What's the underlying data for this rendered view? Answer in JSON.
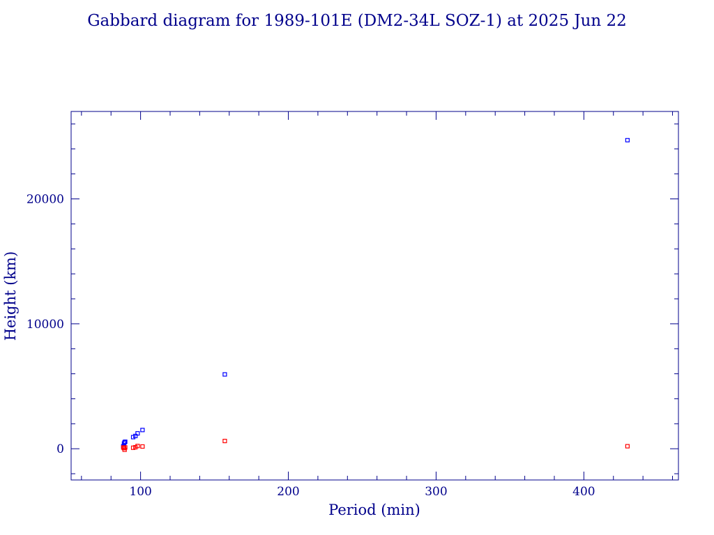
{
  "chart_data": {
    "type": "scatter",
    "title": "Gabbard diagram for 1989-101E (DM2-34L SOZ-1) at 2025 Jun 22",
    "xlabel": "Period (min)",
    "ylabel": "Height (km)",
    "xlim": [
      53,
      464
    ],
    "ylim": [
      -2500,
      27000
    ],
    "x_ticks": [
      100,
      200,
      300,
      400
    ],
    "y_ticks": [
      0,
      10000,
      20000
    ],
    "grid": false,
    "colors": {
      "axes": "#00008b",
      "apogee": "#0000ff",
      "perigee": "#ff0000"
    },
    "series": [
      {
        "x": [
          88.3,
          88.8,
          89.2,
          89.6,
          95.0,
          96.5,
          98.0,
          101.3,
          157.0,
          429.5
        ],
        "y": [
          200,
          420,
          520,
          560,
          930,
          1020,
          1230,
          1500,
          5950,
          24700
        ],
        "color": "#0000ff"
      },
      {
        "x": [
          88.3,
          88.8,
          89.2,
          89.6,
          95.0,
          96.5,
          98.0,
          101.3,
          157.0,
          429.5
        ],
        "y": [
          100,
          50,
          -80,
          100,
          80,
          120,
          220,
          180,
          620,
          200
        ],
        "color": "#ff0000"
      }
    ]
  }
}
